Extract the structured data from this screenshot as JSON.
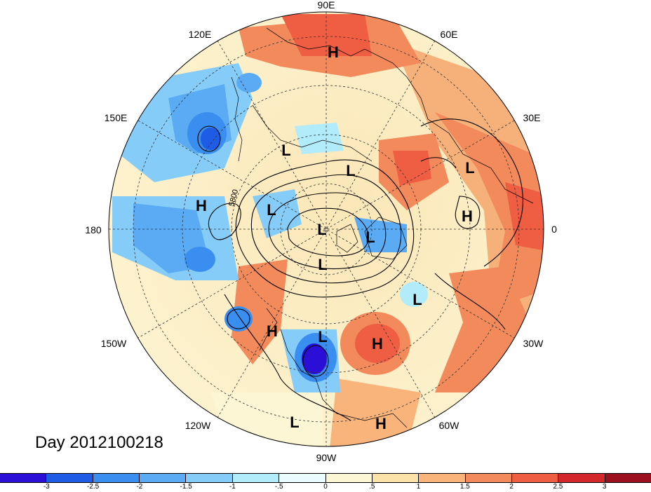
{
  "map": {
    "projection": "polar-stereographic-north",
    "longitude_labels": [
      {
        "text": "90E",
        "lon": 90
      },
      {
        "text": "60E",
        "lon": 60
      },
      {
        "text": "30E",
        "lon": 30
      },
      {
        "text": "0",
        "lon": 0
      },
      {
        "text": "30W",
        "lon": -30
      },
      {
        "text": "60W",
        "lon": -60
      },
      {
        "text": "90W",
        "lon": -90
      },
      {
        "text": "120W",
        "lon": -120
      },
      {
        "text": "150W",
        "lon": -150
      },
      {
        "text": "180",
        "lon": 180
      },
      {
        "text": "150E",
        "lon": 150
      },
      {
        "text": "120E",
        "lon": 120
      }
    ],
    "pressure_centers": [
      {
        "type": "H",
        "region": "central-siberia"
      },
      {
        "type": "L",
        "region": "east-siberia"
      },
      {
        "type": "L",
        "region": "north-siberia"
      },
      {
        "type": "L",
        "region": "west-russia"
      },
      {
        "type": "H",
        "region": "eastern-europe"
      },
      {
        "type": "H",
        "region": "north-pacific"
      },
      {
        "type": "L",
        "region": "chukchi-sea"
      },
      {
        "type": "L",
        "region": "north-pole"
      },
      {
        "type": "L",
        "region": "barents-sea"
      },
      {
        "type": "L",
        "region": "canadian-arctic"
      },
      {
        "type": "L",
        "region": "north-atlantic"
      },
      {
        "type": "H",
        "region": "western-canada"
      },
      {
        "type": "L",
        "region": "central-north-america"
      },
      {
        "type": "H",
        "region": "western-atlantic"
      },
      {
        "type": "L",
        "region": "eastern-pacific-subtropics"
      },
      {
        "type": "H",
        "region": "caribbean"
      }
    ],
    "contour_label": "5800"
  },
  "date_label": "Day 2012100218",
  "colorbar": {
    "colors": [
      "#2c0fd6",
      "#1f5ce6",
      "#3a8ef0",
      "#5aaaf4",
      "#86ccf8",
      "#b2ecfb",
      "#e9fbfd",
      "#fdf6d5",
      "#fbe2a8",
      "#f9b47c",
      "#f28a5b",
      "#ef5d43",
      "#d2282c",
      "#9b0f1f"
    ],
    "tick_labels": [
      "-3",
      "-2.5",
      "-2",
      "-1.5",
      "-1",
      "-.5",
      "0",
      ".5",
      "1",
      "1.5",
      "2",
      "2.5",
      "3"
    ]
  }
}
